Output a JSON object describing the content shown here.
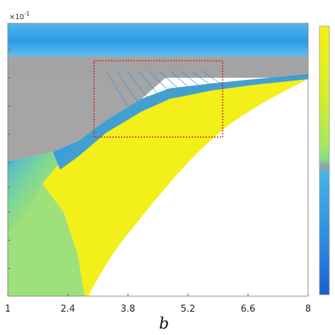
{
  "chart_data": {
    "type": "heatmap",
    "title": "",
    "xlabel": "b",
    "ylabel": "",
    "y_scale_factor_label": "×10",
    "y_scale_factor_exponent": "-1",
    "xlim": [
      1,
      8
    ],
    "x_ticks": [
      1,
      2.4,
      3.8,
      5.2,
      6.6,
      8
    ],
    "x_tick_labels": [
      "1",
      "2.4",
      "3.8",
      "5.2",
      "6.6",
      "8"
    ],
    "colorbar": {
      "label": "",
      "colors_top_to_bottom": [
        "#f4f01a",
        "#d8ee2a",
        "#a5e860",
        "#7ddc8c",
        "#a0a0a0",
        "#45b5e8",
        "#2e8fe0",
        "#1a5fd2"
      ]
    },
    "region_colors": {
      "periodic_yellow": "#f4f01a",
      "gray_band": "#a3a3a3",
      "blue_chaotic": "#2f9be6",
      "green_mixed": "#86de7a",
      "empty": "#ffffff"
    },
    "annotation_box": {
      "style": "dotted",
      "color": "#d91c1c",
      "b_range": [
        3.4,
        6.0
      ]
    }
  }
}
